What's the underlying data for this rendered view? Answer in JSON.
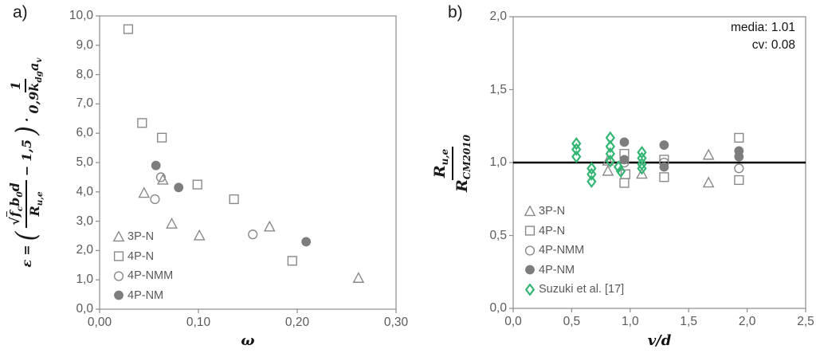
{
  "figure": {
    "panel_a_label": "a)",
    "panel_b_label": "b)"
  },
  "colors": {
    "marker_stroke": "#898989",
    "marker_fill": "#7d7d7d",
    "suzuki_green": "#33b573",
    "axis": "#8c8c8c",
    "tick_text": "#5a5a5a",
    "refline": "#000000"
  },
  "chart_data": [
    {
      "type": "scatter",
      "panel": "a",
      "title": "",
      "xlabel": "ω",
      "ylabel": "ε = (√fc·b0·d/Ru,e − 1,5) · 1/(0,9·kdg·av)",
      "xlim": [
        0,
        0.3
      ],
      "ylim": [
        0,
        10
      ],
      "grid": false,
      "legend_position": "inside-lower-left",
      "xticks": [
        {
          "v": 0.0,
          "label": "0,00"
        },
        {
          "v": 0.1,
          "label": "0,10"
        },
        {
          "v": 0.2,
          "label": "0,20"
        },
        {
          "v": 0.3,
          "label": "0,30"
        }
      ],
      "yticks": [
        {
          "v": 0,
          "label": "0,0"
        },
        {
          "v": 1,
          "label": "1,0"
        },
        {
          "v": 2,
          "label": "2,0"
        },
        {
          "v": 3,
          "label": "3,0"
        },
        {
          "v": 4,
          "label": "4,0"
        },
        {
          "v": 5,
          "label": "5,0"
        },
        {
          "v": 6,
          "label": "6,0"
        },
        {
          "v": 7,
          "label": "7,0"
        },
        {
          "v": 8,
          "label": "8,0"
        },
        {
          "v": 9,
          "label": "9,0"
        },
        {
          "v": 10,
          "label": "10,0"
        }
      ],
      "series": [
        {
          "name": "3P-N",
          "marker": "triangle-open",
          "points": [
            [
              0.045,
              3.95
            ],
            [
              0.064,
              4.4
            ],
            [
              0.073,
              2.9
            ],
            [
              0.101,
              2.5
            ],
            [
              0.172,
              2.8
            ],
            [
              0.262,
              1.05
            ]
          ]
        },
        {
          "name": "4P-N",
          "marker": "square-open",
          "points": [
            [
              0.029,
              9.55
            ],
            [
              0.043,
              6.35
            ],
            [
              0.063,
              5.85
            ],
            [
              0.099,
              4.25
            ],
            [
              0.136,
              3.75
            ],
            [
              0.195,
              1.65
            ]
          ]
        },
        {
          "name": "4P-NMM",
          "marker": "circle-open",
          "points": [
            [
              0.062,
              4.5
            ],
            [
              0.056,
              3.75
            ],
            [
              0.155,
              2.55
            ]
          ]
        },
        {
          "name": "4P-NM",
          "marker": "circle-filled",
          "points": [
            [
              0.057,
              4.9
            ],
            [
              0.08,
              4.15
            ],
            [
              0.209,
              2.3
            ]
          ]
        }
      ]
    },
    {
      "type": "scatter",
      "panel": "b",
      "title": "",
      "xlabel": "v/d",
      "ylabel": "Ru,e / RCM2010",
      "xlim": [
        0,
        2.5
      ],
      "ylim": [
        0,
        2.0
      ],
      "grid": false,
      "refline_y": 1.0,
      "legend_position": "inside-lower-left",
      "annotation": {
        "media": "media: 1.01",
        "cv": "cv: 0.08"
      },
      "xticks": [
        {
          "v": 0.0,
          "label": "0,0"
        },
        {
          "v": 0.5,
          "label": "0,5"
        },
        {
          "v": 1.0,
          "label": "1,0"
        },
        {
          "v": 1.5,
          "label": "1,5"
        },
        {
          "v": 2.0,
          "label": "2,0"
        },
        {
          "v": 2.5,
          "label": "2,5"
        }
      ],
      "yticks": [
        {
          "v": 0.0,
          "label": "0,0"
        },
        {
          "v": 0.5,
          "label": "0,5"
        },
        {
          "v": 1.0,
          "label": "1,0"
        },
        {
          "v": 1.5,
          "label": "1,5"
        },
        {
          "v": 2.0,
          "label": "2,0"
        }
      ],
      "series": [
        {
          "name": "3P-N",
          "marker": "triangle-open",
          "points": [
            [
              0.81,
              1.01
            ],
            [
              0.81,
              0.94
            ],
            [
              1.1,
              0.92
            ],
            [
              1.67,
              1.05
            ],
            [
              1.67,
              0.86
            ]
          ]
        },
        {
          "name": "4P-N",
          "marker": "square-open",
          "points": [
            [
              0.95,
              1.06
            ],
            [
              0.96,
              0.92
            ],
            [
              0.95,
              0.86
            ],
            [
              1.29,
              1.02
            ],
            [
              1.29,
              0.9
            ],
            [
              1.93,
              1.17
            ],
            [
              1.93,
              0.88
            ]
          ]
        },
        {
          "name": "4P-NMM",
          "marker": "circle-open",
          "points": [
            [
              0.95,
              1.0
            ],
            [
              1.29,
              1.0
            ],
            [
              1.93,
              0.96
            ]
          ]
        },
        {
          "name": "4P-NM",
          "marker": "circle-filled",
          "points": [
            [
              0.95,
              1.14
            ],
            [
              0.95,
              1.02
            ],
            [
              1.29,
              1.12
            ],
            [
              1.29,
              0.97
            ],
            [
              1.93,
              1.08
            ],
            [
              1.93,
              1.04
            ]
          ]
        },
        {
          "name": "Suzuki et al. [17]",
          "marker": "diamond-open",
          "points": [
            [
              0.54,
              1.13
            ],
            [
              0.54,
              1.09
            ],
            [
              0.54,
              1.04
            ],
            [
              0.67,
              0.96
            ],
            [
              0.67,
              0.92
            ],
            [
              0.67,
              0.87
            ],
            [
              0.83,
              1.17
            ],
            [
              0.83,
              1.11
            ],
            [
              0.83,
              1.06
            ],
            [
              0.83,
              1.01
            ],
            [
              0.9,
              0.97
            ],
            [
              0.92,
              0.94
            ],
            [
              1.1,
              1.07
            ],
            [
              1.1,
              1.03
            ],
            [
              1.1,
              0.99
            ],
            [
              1.1,
              0.96
            ]
          ]
        }
      ]
    }
  ],
  "formula_a": {
    "eps": "ε",
    "eq": "=",
    "lp": "(",
    "rp": ")",
    "sqrt": "√",
    "f": "f",
    "sub_c": "c",
    "b": "b",
    "sub_0": "0",
    "d": "d",
    "R": "R",
    "sub_ue": "u,e",
    "minus": "−",
    "const": "1,5",
    "cdot": "·",
    "one": "1",
    "den_pre": "0,9k",
    "sub_dg": "dg",
    "a": "a",
    "sub_v": "v"
  },
  "formula_b": {
    "num_R": "R",
    "num_sub": "u,e",
    "den_R": "R",
    "den_sub": "CM2010"
  }
}
